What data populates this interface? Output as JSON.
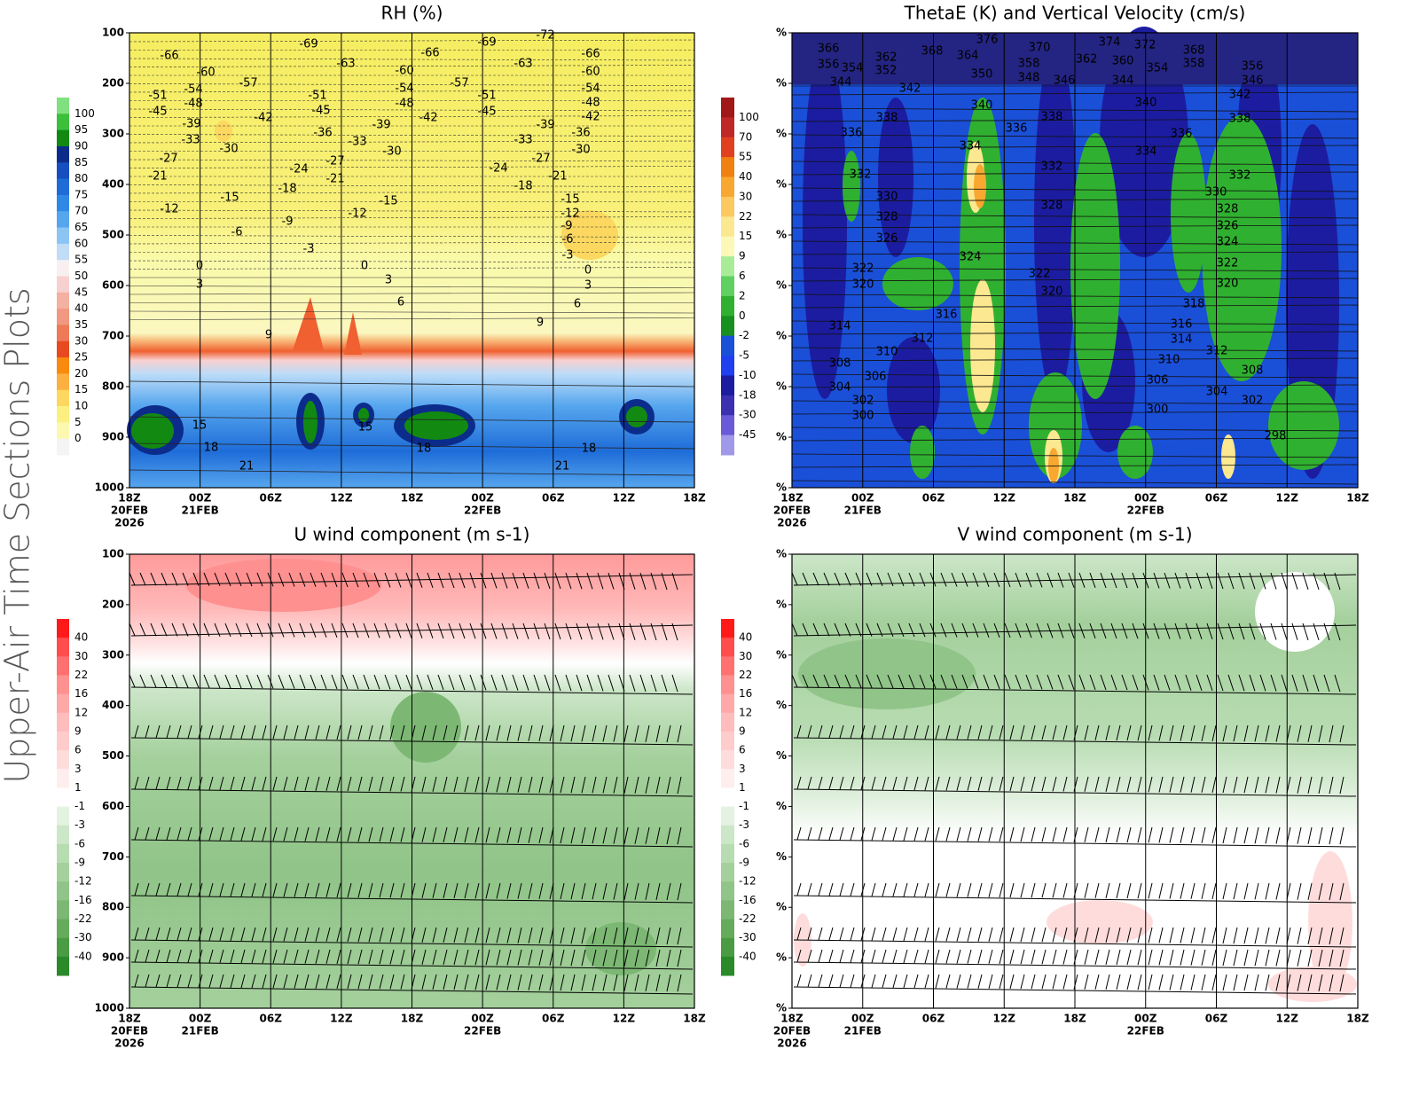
{
  "side_title": "Upper-Air Time Sections Plots",
  "panels": [
    {
      "title": "RH (%)",
      "yticks": [
        "100",
        "200",
        "300",
        "400",
        "500",
        "600",
        "700",
        "800",
        "900",
        "1000"
      ],
      "xticks": [
        {
          "time": "18Z",
          "date": "20FEB",
          "year": "2026"
        },
        {
          "time": "00Z",
          "date": "21FEB"
        },
        {
          "time": "06Z"
        },
        {
          "time": "12Z"
        },
        {
          "time": "18Z"
        },
        {
          "time": "00Z",
          "date": "22FEB"
        },
        {
          "time": "06Z"
        },
        {
          "time": "12Z"
        },
        {
          "time": "18Z"
        }
      ],
      "colorbar": {
        "labels": [
          "100",
          "95",
          "90",
          "85",
          "80",
          "75",
          "70",
          "65",
          "60",
          "55",
          "50",
          "45",
          "40",
          "35",
          "30",
          "25",
          "20",
          "15",
          "10",
          "5",
          "0"
        ],
        "colors": [
          "#80e080",
          "#3cc03c",
          "#128a12",
          "#0c2c8c",
          "#1650c0",
          "#1e6cd8",
          "#3088e6",
          "#56a6ee",
          "#8cc4f4",
          "#c0dcf6",
          "#f8f0f0",
          "#f8d0d0",
          "#f4b0a0",
          "#f09880",
          "#ee7a58",
          "#e84a20",
          "#f88a10",
          "#fcb040",
          "#fcd860",
          "#fcf080",
          "#fcf8b0",
          "#f4f4f4"
        ]
      },
      "contour_labels": [
        "-72",
        "-69",
        "-69",
        "-66",
        "-66",
        "-66",
        "-63",
        "-63",
        "-60",
        "-60",
        "-60",
        "-57",
        "-57",
        "-54",
        "-54",
        "-54",
        "-51",
        "-51",
        "-51",
        "-48",
        "-48",
        "-48",
        "-45",
        "-45",
        "-45",
        "-42",
        "-42",
        "-42",
        "-39",
        "-39",
        "-39",
        "-36",
        "-36",
        "-33",
        "-33",
        "-33",
        "-30",
        "-30",
        "-30",
        "-27",
        "-27",
        "-27",
        "-24",
        "-24",
        "-21",
        "-21",
        "-21",
        "-18",
        "-18",
        "-15",
        "-15",
        "-15",
        "-12",
        "-12",
        "-12",
        "-9",
        "-9",
        "-6",
        "-6",
        "-3",
        "-3",
        "0",
        "0",
        "0",
        "3",
        "3",
        "3",
        "6",
        "6",
        "9",
        "9",
        "15",
        "15",
        "18",
        "18",
        "18",
        "21",
        "21"
      ]
    },
    {
      "title": "ThetaE (K) and Vertical Velocity (cm/s)",
      "yticks": [
        "%",
        "%",
        "%",
        "%",
        "%",
        "%",
        "%",
        "%",
        "%",
        "%"
      ],
      "xticks": [
        {
          "time": "18Z",
          "date": "20FEB",
          "year": "2026"
        },
        {
          "time": "00Z",
          "date": "21FEB"
        },
        {
          "time": "06Z"
        },
        {
          "time": "12Z"
        },
        {
          "time": "18Z"
        },
        {
          "time": "00Z",
          "date": "22FEB"
        },
        {
          "time": "06Z"
        },
        {
          "time": "12Z"
        },
        {
          "time": "18Z"
        }
      ],
      "colorbar": {
        "labels": [
          "100",
          "70",
          "55",
          "40",
          "30",
          "22",
          "15",
          "9",
          "6",
          "2",
          "0",
          "-2",
          "-5",
          "-10",
          "-18",
          "-30",
          "-45"
        ],
        "colors": [
          "#a01818",
          "#c02828",
          "#e04020",
          "#f08010",
          "#f8a830",
          "#fcc860",
          "#fce890",
          "#fcf8b8",
          "#a8ec98",
          "#60d060",
          "#30b030",
          "#18901f",
          "#1a4fd8",
          "#2040f0",
          "#1c1ca0",
          "#3a30b0",
          "#6a5ad8",
          "#a098e8"
        ]
      },
      "contour_labels": [
        "366",
        "356",
        "354",
        "362",
        "352",
        "368",
        "376",
        "364",
        "370",
        "358",
        "348",
        "350",
        "346",
        "374",
        "372",
        "362",
        "360",
        "354",
        "344",
        "368",
        "358",
        "356",
        "346",
        "344",
        "342",
        "340",
        "338",
        "340",
        "342",
        "338",
        "338",
        "336",
        "336",
        "336",
        "334",
        "334",
        "332",
        "332",
        "332",
        "330",
        "330",
        "328",
        "328",
        "328",
        "326",
        "326",
        "324",
        "324",
        "322",
        "322",
        "322",
        "320",
        "320",
        "320",
        "318",
        "316",
        "316",
        "314",
        "314",
        "312",
        "312",
        "310",
        "310",
        "308",
        "308",
        "306",
        "306",
        "304",
        "304",
        "302",
        "302",
        "300",
        "300",
        "298"
      ]
    },
    {
      "title": "U wind component (m s-1)",
      "yticks": [
        "100",
        "200",
        "300",
        "400",
        "500",
        "600",
        "700",
        "800",
        "900",
        "1000"
      ],
      "xticks": [
        {
          "time": "18Z",
          "date": "20FEB",
          "year": "2026"
        },
        {
          "time": "00Z",
          "date": "21FEB"
        },
        {
          "time": "06Z"
        },
        {
          "time": "12Z"
        },
        {
          "time": "18Z"
        },
        {
          "time": "00Z",
          "date": "22FEB"
        },
        {
          "time": "06Z"
        },
        {
          "time": "12Z"
        },
        {
          "time": "18Z"
        }
      ],
      "colorbar": {
        "labels": [
          "40",
          "30",
          "22",
          "16",
          "12",
          "9",
          "6",
          "3",
          "1",
          "-1",
          "-3",
          "-6",
          "-9",
          "-12",
          "-16",
          "-22",
          "-30",
          "-40"
        ],
        "colors": [
          "#ff1a1a",
          "#ff4c4c",
          "#ff7070",
          "#ff9090",
          "#ffa8a8",
          "#ffbcbc",
          "#ffcccc",
          "#ffdcdc",
          "#ffeeee",
          "#ffffff",
          "#e4f2e2",
          "#cce6c8",
          "#b8dcb2",
          "#a4d09c",
          "#90c488",
          "#7cb874",
          "#64ac5c",
          "#4a9c44",
          "#2a8a2a"
        ]
      }
    },
    {
      "title": "V wind component (m s-1)",
      "yticks": [
        "%",
        "%",
        "%",
        "%",
        "%",
        "%",
        "%",
        "%",
        "%",
        "%"
      ],
      "xticks": [
        {
          "time": "18Z",
          "date": "20FEB",
          "year": "2026"
        },
        {
          "time": "00Z",
          "date": "21FEB"
        },
        {
          "time": "06Z"
        },
        {
          "time": "12Z"
        },
        {
          "time": "18Z"
        },
        {
          "time": "00Z",
          "date": "22FEB"
        },
        {
          "time": "06Z"
        },
        {
          "time": "12Z"
        },
        {
          "time": "18Z"
        }
      ],
      "colorbar": {
        "labels": [
          "40",
          "30",
          "22",
          "16",
          "12",
          "9",
          "6",
          "3",
          "1",
          "-1",
          "-3",
          "-6",
          "-9",
          "-12",
          "-16",
          "-22",
          "-30",
          "-40"
        ],
        "colors": [
          "#ff1a1a",
          "#ff4c4c",
          "#ff7070",
          "#ff9090",
          "#ffa8a8",
          "#ffbcbc",
          "#ffcccc",
          "#ffdcdc",
          "#ffeeee",
          "#ffffff",
          "#e4f2e2",
          "#cce6c8",
          "#b8dcb2",
          "#a4d09c",
          "#90c488",
          "#7cb874",
          "#64ac5c",
          "#4a9c44",
          "#2a8a2a"
        ]
      }
    }
  ]
}
